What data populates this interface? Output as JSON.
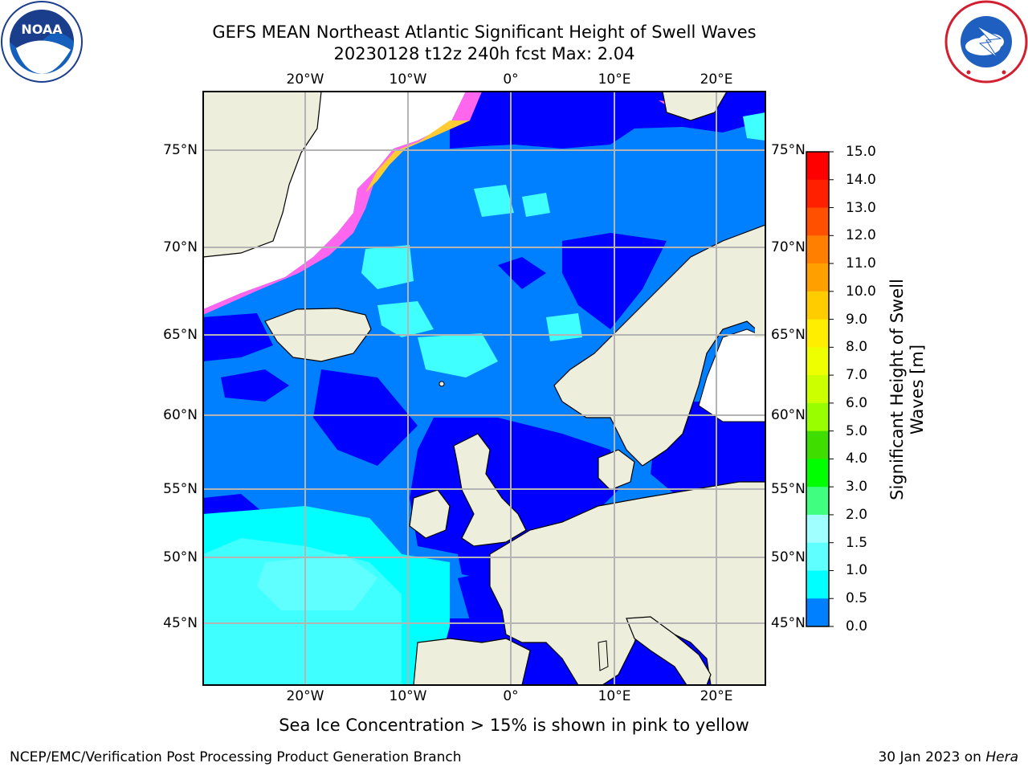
{
  "title": {
    "line1": "GEFS MEAN Northeast Atlantic Significant Height of Swell Waves",
    "line2": "20230128 t12z 240h fcst   Max: 2.04"
  },
  "logos": {
    "left": "noaa-logo",
    "right": "nws-logo"
  },
  "map": {
    "lon_ticks": [
      "20°W",
      "10°W",
      "0°",
      "10°E",
      "20°E"
    ],
    "lat_ticks": [
      "75°N",
      "70°N",
      "65°N",
      "60°N",
      "55°N",
      "50°N",
      "45°N"
    ],
    "gridlines": true,
    "colors": {
      "land": "#eeeedc",
      "ice_free_white": "#ffffff",
      "wave_0_05": "#0000ff",
      "wave_05_10": "#0080ff",
      "wave_10_15": "#00ffff",
      "wave_15_20": "#40ffff"
    }
  },
  "colorbar": {
    "label": "Significant Height of Swell Waves [m]",
    "ticks": [
      "15.0",
      "14.0",
      "13.0",
      "12.0",
      "11.0",
      "10.0",
      "9.0",
      "8.0",
      "7.0",
      "6.0",
      "5.0",
      "4.0",
      "3.0",
      "2.0",
      "1.5",
      "1.0",
      "0.5",
      "0.0"
    ],
    "colors": [
      "#ff0000",
      "#ff2000",
      "#ff5000",
      "#ff8000",
      "#ffa000",
      "#ffcc00",
      "#ffee00",
      "#eeff00",
      "#ccff00",
      "#99ff00",
      "#40dd00",
      "#00ff00",
      "#40ff80",
      "#a0ffff",
      "#60ffff",
      "#00ffff",
      "#0080ff",
      "#0000ff"
    ]
  },
  "caption": "Sea Ice Concentration > 15% is shown in pink to yellow",
  "footer": {
    "left": "NCEP/EMC/Verification Post Processing Product Generation Branch",
    "right_prefix": "30 Jan 2023 on ",
    "right_machine": "Hera"
  }
}
